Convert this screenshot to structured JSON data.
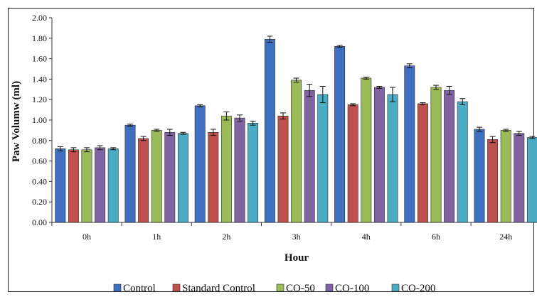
{
  "chart_data": {
    "type": "bar",
    "title": "",
    "xlabel": "Hour",
    "ylabel": "Paw Volumw (ml)",
    "ylim": [
      0,
      2.0
    ],
    "y_ticks": [
      "0.00",
      "0.20",
      "0.40",
      "0.60",
      "0.80",
      "1.00",
      "1.20",
      "1.40",
      "1.60",
      "1.80",
      "2.00"
    ],
    "grid": false,
    "legend_position": "bottom",
    "categories": [
      "0h",
      "1h",
      "2h",
      "3h",
      "4h",
      "6h",
      "24h"
    ],
    "series": [
      {
        "name": "Control",
        "color": "#3f6fbf",
        "values": [
          0.72,
          0.95,
          1.14,
          1.79,
          1.72,
          1.53,
          0.91
        ],
        "errors": [
          0.02,
          0.01,
          0.01,
          0.03,
          0.01,
          0.02,
          0.02
        ]
      },
      {
        "name": "Standard Control",
        "color": "#c0504d",
        "values": [
          0.71,
          0.82,
          0.88,
          1.04,
          1.15,
          1.16,
          0.81
        ],
        "errors": [
          0.02,
          0.02,
          0.03,
          0.03,
          0.01,
          0.01,
          0.03
        ]
      },
      {
        "name": "CO-50",
        "color": "#9bbb59",
        "values": [
          0.71,
          0.9,
          1.04,
          1.39,
          1.41,
          1.32,
          0.9
        ],
        "errors": [
          0.02,
          0.01,
          0.04,
          0.02,
          0.01,
          0.02,
          0.01
        ]
      },
      {
        "name": "CO-100",
        "color": "#8064a2",
        "values": [
          0.73,
          0.88,
          1.02,
          1.29,
          1.32,
          1.29,
          0.87
        ],
        "errors": [
          0.02,
          0.03,
          0.03,
          0.06,
          0.01,
          0.04,
          0.02
        ]
      },
      {
        "name": "CO-200",
        "color": "#4bacc6",
        "values": [
          0.72,
          0.87,
          0.97,
          1.25,
          1.25,
          1.18,
          0.83
        ],
        "errors": [
          0.01,
          0.01,
          0.02,
          0.08,
          0.07,
          0.03,
          0.01
        ]
      }
    ]
  }
}
